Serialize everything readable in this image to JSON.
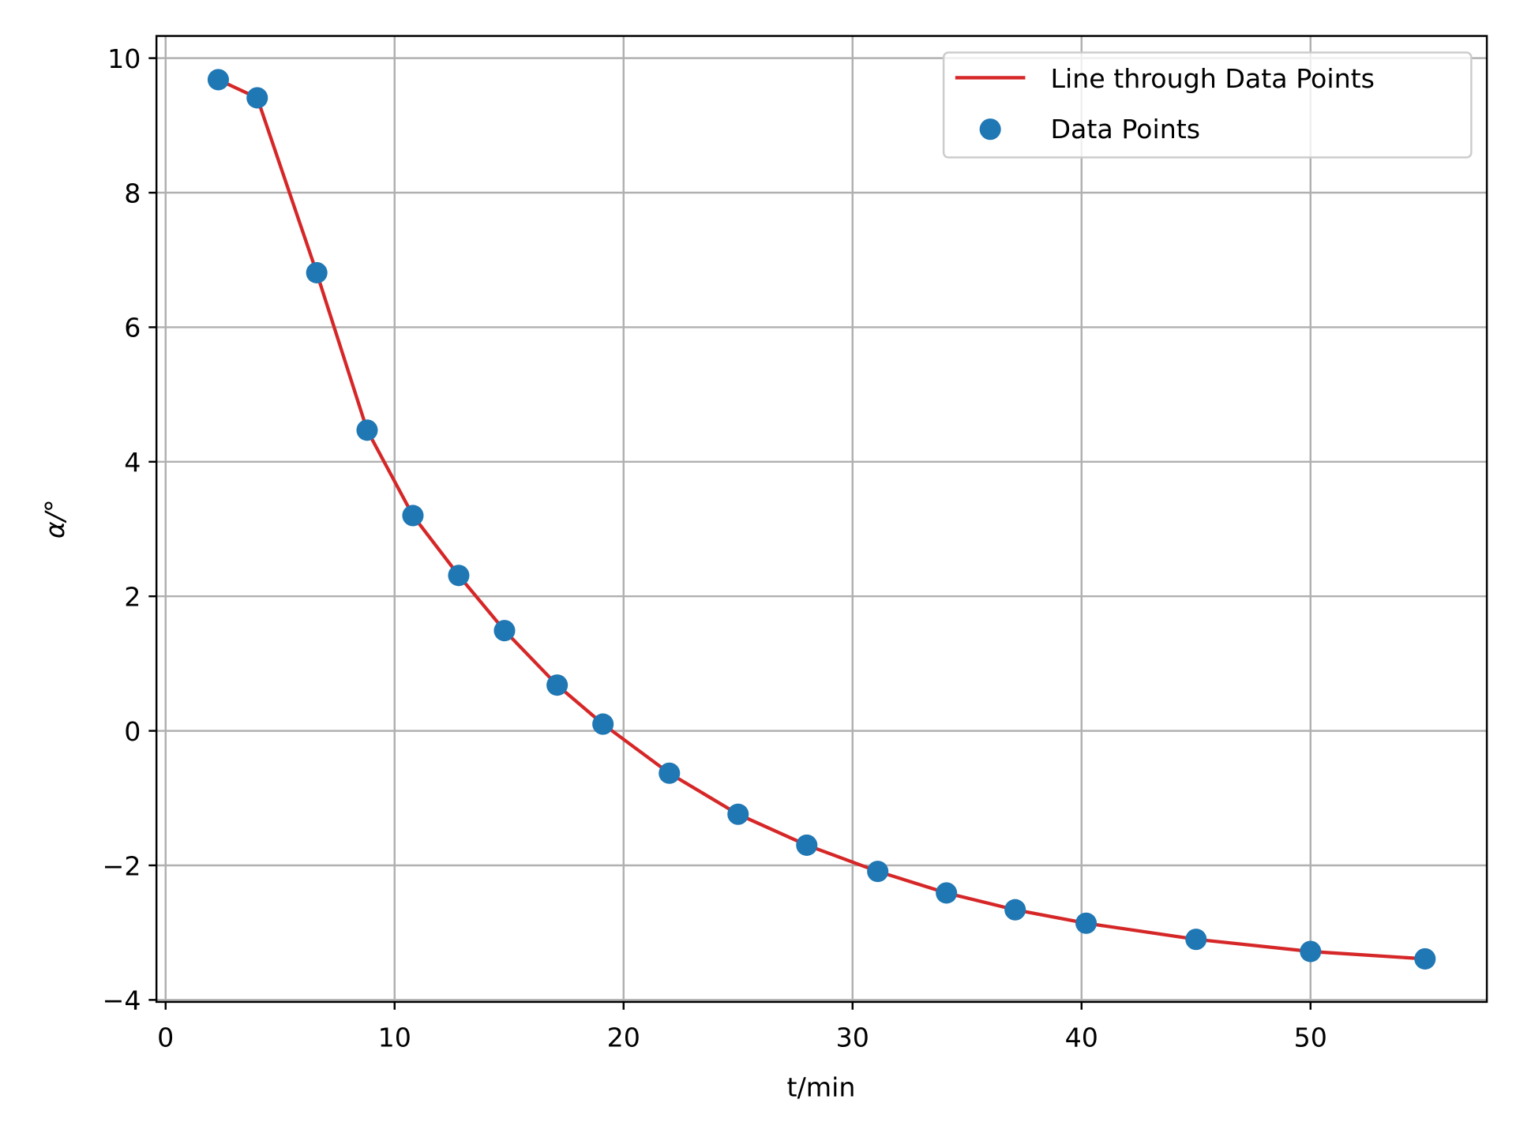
{
  "chart_data": {
    "type": "line",
    "title": "",
    "xlabel": "t/min",
    "ylabel": "α/°",
    "xlim": [
      -0.4,
      57.7
    ],
    "ylim": [
      -4.03,
      10.33
    ],
    "xticks": [
      0,
      10,
      20,
      30,
      40,
      50
    ],
    "yticks": [
      -4,
      -2,
      0,
      2,
      4,
      6,
      8,
      10
    ],
    "xtick_labels": [
      "0",
      "10",
      "20",
      "30",
      "40",
      "50"
    ],
    "ytick_labels": [
      "−4",
      "−2",
      "0",
      "2",
      "4",
      "6",
      "8",
      "10"
    ],
    "grid": true,
    "legend_placement": "upper-right",
    "x": [
      2.3,
      4.0,
      6.6,
      8.8,
      10.8,
      12.8,
      14.8,
      17.1,
      19.1,
      22.0,
      25.0,
      28.0,
      31.1,
      34.1,
      37.1,
      40.2,
      45.0,
      50.0,
      55.0
    ],
    "series": [
      {
        "name": "Line through Data Points",
        "kind": "line",
        "color": "#d62728",
        "values": [
          9.68,
          9.41,
          6.81,
          4.47,
          3.2,
          2.31,
          1.49,
          0.68,
          0.1,
          -0.63,
          -1.24,
          -1.7,
          -2.09,
          -2.41,
          -2.66,
          -2.86,
          -3.1,
          -3.28,
          -3.39
        ]
      },
      {
        "name": "Data Points",
        "kind": "scatter",
        "color": "#1f77b4",
        "values": [
          9.68,
          9.41,
          6.81,
          4.47,
          3.2,
          2.31,
          1.49,
          0.68,
          0.1,
          -0.63,
          -1.24,
          -1.7,
          -2.09,
          -2.41,
          -2.66,
          -2.86,
          -3.1,
          -3.28,
          -3.39
        ]
      }
    ]
  }
}
